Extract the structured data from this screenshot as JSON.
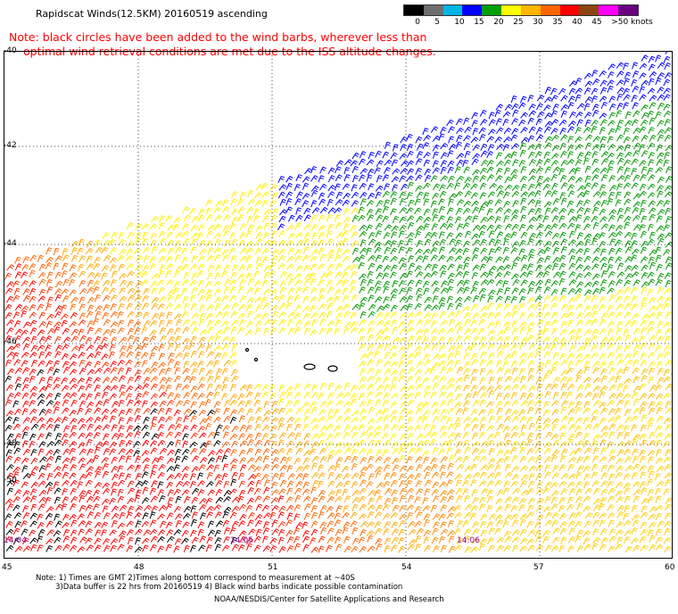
{
  "header": {
    "title": "Rapidscat Winds(12.5KM) 20160519 ascending",
    "note_line1": "Note: black circles have been added to the wind barbs, wherever less than",
    "note_line2": "optimal wind retrieval conditions are met due to the ISS altitude changes."
  },
  "colorbar": {
    "labels": [
      "0",
      "5",
      "10",
      "15",
      "20",
      "25",
      "30",
      "35",
      "40",
      "45",
      ">50 knots"
    ],
    "colors": [
      "#000000",
      "#6e6e6e",
      "#00b4e6",
      "#0000ff",
      "#00a000",
      "#ffff00",
      "#ffb400",
      "#ff6400",
      "#ff0000",
      "#8b4513",
      "#ff00ff",
      "#6a0080"
    ]
  },
  "map": {
    "lat_labels": [
      "-40",
      "-42",
      "-44",
      "-46",
      "-48",
      "-50"
    ],
    "lon_labels": [
      "45",
      "48",
      "51",
      "54",
      "57",
      "60"
    ],
    "time_labels": [
      "14:04",
      "14:05",
      "14:06"
    ],
    "land_color": "#ffffff"
  },
  "footer": {
    "line1": "Note: 1) Times are GMT 2)Times along bottom correspond to measurement at ~40S",
    "line2": "3)Data buffer is 22 hrs from 20160519 4) Black wind barbs indicate possible contamination",
    "credit": "NOAA/NESDIS/Center for Satellite Applications and Research"
  }
}
